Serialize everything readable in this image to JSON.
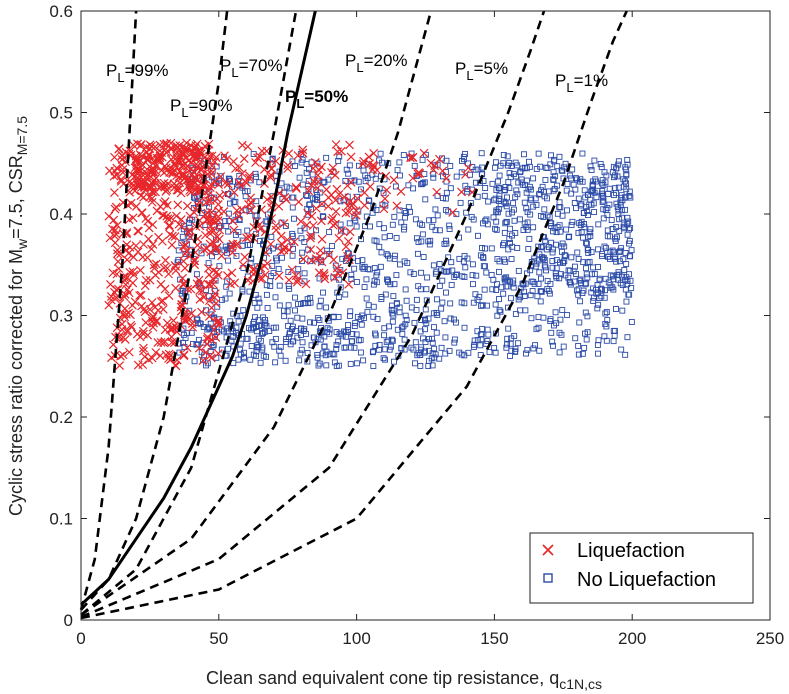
{
  "chart_data": {
    "type": "scatter",
    "xlabel": "Clean sand equivalent cone tip resistance, q",
    "xlabel_sub": "c1N,cs",
    "ylabel_parts": [
      "Cyclic stress ratio corrected for M",
      "w",
      "=7.5, CSR",
      "M=7.5"
    ],
    "xlim": [
      0,
      250
    ],
    "ylim": [
      0,
      0.6
    ],
    "xticks": [
      "0",
      "50",
      "100",
      "150",
      "200",
      "250"
    ],
    "yticks": [
      "0",
      "0.1",
      "0.2",
      "0.3",
      "0.4",
      "0.5",
      "0.6"
    ],
    "grid": false,
    "legend_position": "bottom-right",
    "legend": [
      {
        "name": "Liquefaction",
        "marker": "x",
        "color": "#e8262a"
      },
      {
        "name": "No Liquefaction",
        "marker": "square",
        "color": "#2b4ba8"
      }
    ],
    "curves": [
      {
        "label_main": "P",
        "label_sub": "L",
        "label_rest": "=99%",
        "style": "dashed",
        "points": [
          [
            0,
            0.01
          ],
          [
            5,
            0.06
          ],
          [
            10,
            0.17
          ],
          [
            15,
            0.35
          ],
          [
            20,
            0.6
          ]
        ]
      },
      {
        "label_main": "P",
        "label_sub": "L",
        "label_rest": "=90%",
        "style": "dashed",
        "points": [
          [
            0,
            0.01
          ],
          [
            10,
            0.04
          ],
          [
            20,
            0.1
          ],
          [
            30,
            0.2
          ],
          [
            40,
            0.35
          ],
          [
            50,
            0.53
          ],
          [
            53,
            0.6
          ]
        ]
      },
      {
        "label_main": "P",
        "label_sub": "L",
        "label_rest": "=70%",
        "style": "dashed",
        "points": [
          [
            0,
            0.005
          ],
          [
            20,
            0.05
          ],
          [
            40,
            0.15
          ],
          [
            60,
            0.34
          ],
          [
            70,
            0.48
          ],
          [
            78,
            0.6
          ]
        ]
      },
      {
        "label_main": "P",
        "label_sub": "L",
        "label_rest": "=50%",
        "style": "solid",
        "bold": true,
        "points": [
          [
            0,
            0.015
          ],
          [
            10,
            0.04
          ],
          [
            20,
            0.08
          ],
          [
            30,
            0.12
          ],
          [
            40,
            0.17
          ],
          [
            50,
            0.23
          ],
          [
            55,
            0.26
          ],
          [
            60,
            0.3
          ],
          [
            65,
            0.35
          ],
          [
            70,
            0.41
          ],
          [
            75,
            0.48
          ],
          [
            80,
            0.54
          ],
          [
            85,
            0.6
          ]
        ]
      },
      {
        "label_main": "P",
        "label_sub": "L",
        "label_rest": "=20%",
        "style": "dashed",
        "points": [
          [
            0,
            0.005
          ],
          [
            40,
            0.08
          ],
          [
            70,
            0.19
          ],
          [
            90,
            0.3
          ],
          [
            105,
            0.4
          ],
          [
            115,
            0.48
          ],
          [
            122,
            0.55
          ],
          [
            127,
            0.6
          ]
        ]
      },
      {
        "label_main": "P",
        "label_sub": "L",
        "label_rest": "=5%",
        "style": "dashed",
        "points": [
          [
            0,
            0.003
          ],
          [
            50,
            0.06
          ],
          [
            90,
            0.15
          ],
          [
            120,
            0.28
          ],
          [
            140,
            0.4
          ],
          [
            155,
            0.5
          ],
          [
            163,
            0.56
          ],
          [
            168,
            0.6
          ]
        ]
      },
      {
        "label_main": "P",
        "label_sub": "L",
        "label_rest": "=1%",
        "style": "dashed",
        "points": [
          [
            0,
            0.002
          ],
          [
            50,
            0.03
          ],
          [
            100,
            0.1
          ],
          [
            140,
            0.23
          ],
          [
            160,
            0.33
          ],
          [
            175,
            0.43
          ],
          [
            185,
            0.51
          ],
          [
            193,
            0.57
          ],
          [
            198,
            0.6
          ]
        ]
      }
    ],
    "liquefaction_clusters": [
      {
        "x": [
          10,
          50
        ],
        "y": [
          0.25,
          0.47
        ],
        "n": 420
      },
      {
        "x": [
          20,
          45
        ],
        "y": [
          0.42,
          0.47
        ],
        "n": 160
      },
      {
        "x": [
          45,
          100
        ],
        "y": [
          0.33,
          0.47
        ],
        "n": 220
      },
      {
        "x": [
          100,
          145
        ],
        "y": [
          0.4,
          0.46
        ],
        "n": 40
      }
    ],
    "no_liquefaction_clusters": [
      {
        "x": [
          35,
          200
        ],
        "y": [
          0.26,
          0.46
        ],
        "n": 1100
      },
      {
        "x": [
          150,
          200
        ],
        "y": [
          0.32,
          0.45
        ],
        "n": 260
      },
      {
        "x": [
          40,
          130
        ],
        "y": [
          0.25,
          0.3
        ],
        "n": 180
      }
    ]
  }
}
